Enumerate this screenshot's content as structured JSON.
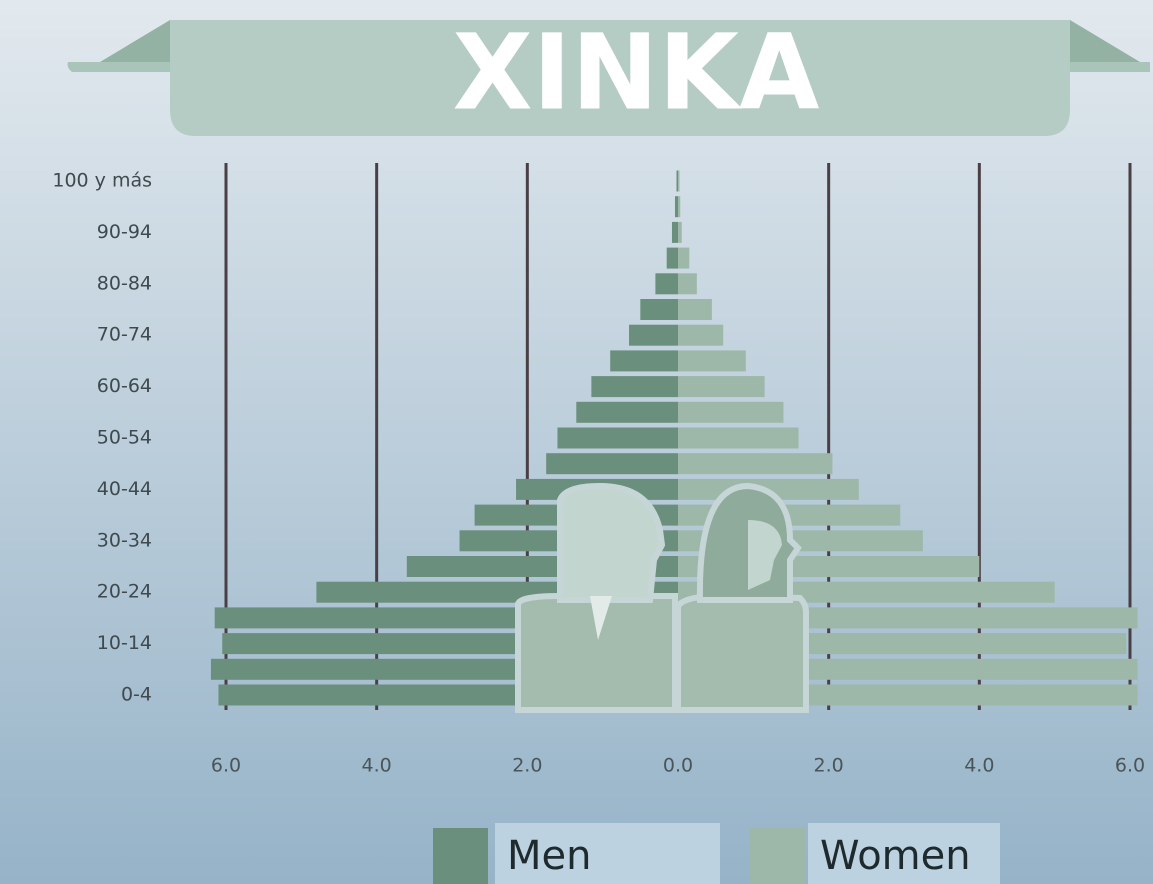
{
  "chart_data": {
    "type": "population-pyramid",
    "title": "XINKA",
    "categories": [
      "0-4",
      null,
      "10-14",
      null,
      "20-24",
      null,
      "30-34",
      null,
      "40-44",
      null,
      "50-54",
      null,
      "60-64",
      null,
      "70-74",
      null,
      "80-84",
      null,
      "90-94",
      null,
      "100 y más"
    ],
    "series": [
      {
        "name": "Men",
        "color": "#6b8f7d",
        "values": [
          6.1,
          6.2,
          6.05,
          6.15,
          4.8,
          3.6,
          2.9,
          2.7,
          2.15,
          1.75,
          1.6,
          1.35,
          1.15,
          0.9,
          0.65,
          0.5,
          0.3,
          0.15,
          0.08,
          0.04,
          0.02
        ]
      },
      {
        "name": "Women",
        "color": "#9db8a8",
        "values": [
          6.1,
          6.1,
          5.95,
          6.1,
          5.0,
          4.0,
          3.25,
          2.95,
          2.4,
          2.05,
          1.6,
          1.4,
          1.15,
          0.9,
          0.6,
          0.45,
          0.25,
          0.15,
          0.05,
          0.03,
          0.02
        ]
      }
    ],
    "xlim": [
      -6,
      6
    ],
    "xticks": [
      {
        "value": -6,
        "label": "6.0"
      },
      {
        "value": -4,
        "label": "4.0"
      },
      {
        "value": -2,
        "label": "2.0"
      },
      {
        "value": 0,
        "label": "0.0"
      },
      {
        "value": 2,
        "label": "2.0"
      },
      {
        "value": 4,
        "label": "4.0"
      },
      {
        "value": 6,
        "label": "6.0"
      }
    ],
    "grid": true
  }
}
